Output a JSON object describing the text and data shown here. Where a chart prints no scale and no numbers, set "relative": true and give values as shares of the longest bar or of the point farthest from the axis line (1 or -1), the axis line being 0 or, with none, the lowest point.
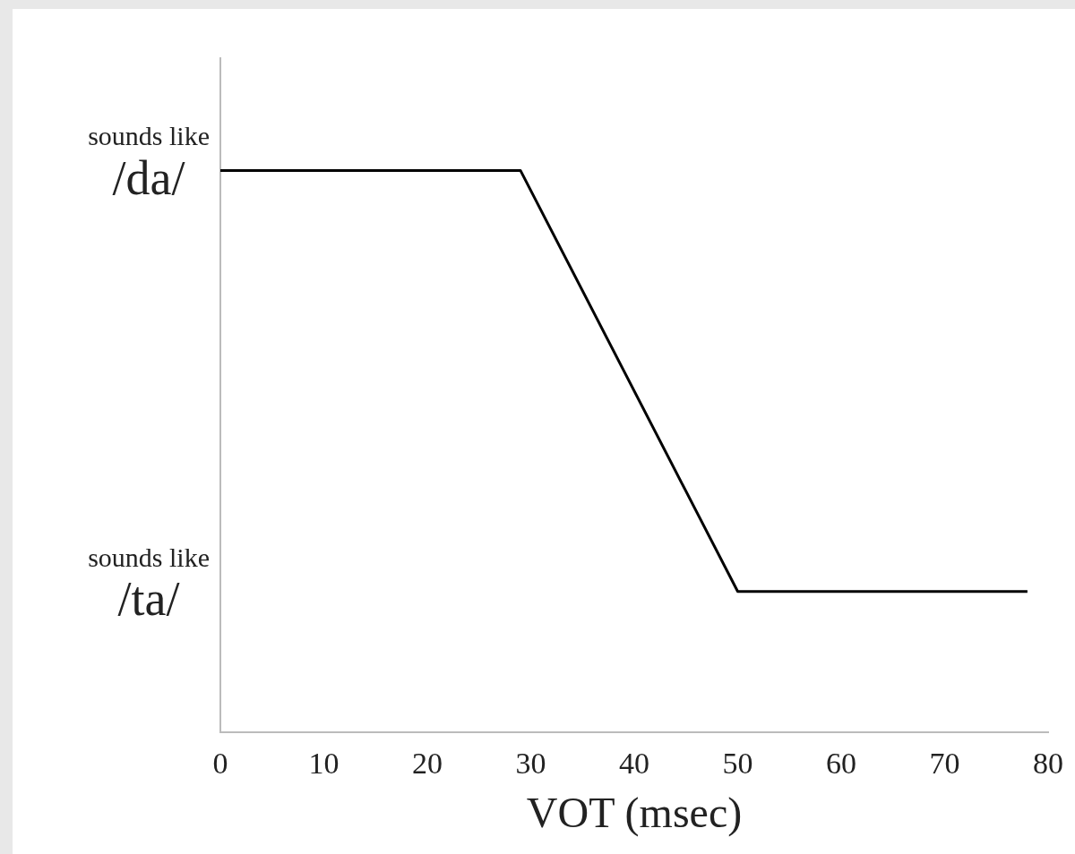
{
  "chart_data": {
    "type": "line",
    "xlabel": "VOT (msec)",
    "x": [
      0,
      29,
      50,
      78
    ],
    "series": [
      {
        "color": "#000000",
        "values": [
          1,
          1,
          0.25,
          0.25
        ]
      }
    ],
    "xlim": [
      0,
      80
    ],
    "xticks": [
      0,
      10,
      20,
      30,
      40,
      50,
      60,
      70,
      80
    ],
    "relative": true,
    "annotations": [
      "sounds like /da/",
      "sounds like /ta/"
    ],
    "grid": false,
    "legend": false,
    "marker": "none",
    "line_style": "solid"
  }
}
